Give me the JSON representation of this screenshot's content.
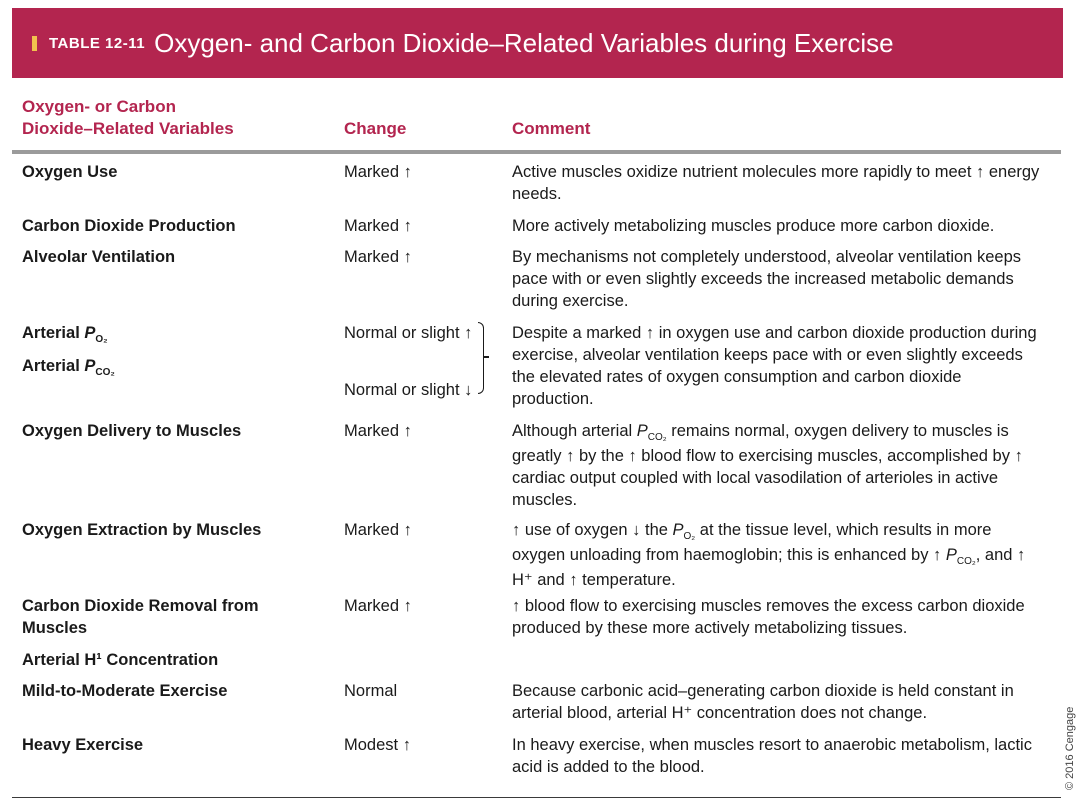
{
  "banner": {
    "tag": "TABLE 12-11",
    "title": "Oxygen- and Carbon Dioxide–Related Variables during Exercise",
    "color": "#b3254f"
  },
  "headers": {
    "var_line1": "Oxygen- or Carbon",
    "var_line2": "Dioxide–Related Variables",
    "change": "Change",
    "comment": "Comment"
  },
  "rows": [
    {
      "variable": "Oxygen Use",
      "change": "Marked ↑",
      "comment": "Active muscles oxidize nutrient molecules more rapidly to meet ↑ energy needs."
    },
    {
      "variable": "Carbon Dioxide Production",
      "change": "Marked ↑",
      "comment": "More actively metabolizing muscles produce more carbon dioxide."
    },
    {
      "variable": "Alveolar Ventilation",
      "change": "Marked ↑",
      "comment": "By mechanisms not completely understood, alveolar ventilation keeps pace with or even slightly exceeds the increased metabolic demands during exercise."
    },
    {
      "variable_main": "Arterial ",
      "variable_p": "P",
      "variable_sub": "O₂",
      "change": "Normal or slight ↑",
      "comment": "Despite a marked ↑ in oxygen use and carbon dioxide production during exercise, alveolar ventilation keeps pace with or even slightly exceeds the elevated rates of oxygen consumption and carbon dioxide production."
    },
    {
      "variable_main": "Arterial ",
      "variable_p": "P",
      "variable_sub": "CO₂",
      "change": "Normal or slight ↓"
    },
    {
      "variable": "Oxygen Delivery to Muscles",
      "change": "Marked ↑",
      "comment_pre": "Although arterial ",
      "comment_p": "P",
      "comment_sub": "CO₂",
      "comment_post": " remains normal, oxygen delivery to muscles is greatly ↑ by the ↑ blood flow to exercising muscles, accomplished by ↑ cardiac output coupled with local vasodilation of arterioles in active muscles."
    },
    {
      "variable": "Oxygen Extraction by Muscles",
      "change": "Marked ↑",
      "comment_a": "↑ use of oxygen ↓ the ",
      "comment_p1": "P",
      "comment_sub1": "O₂",
      "comment_b": " at the tissue level, which results in more oxygen unloading from haemoglobin; this is enhanced by ↑ ",
      "comment_p2": "P",
      "comment_sub2": "CO₂",
      "comment_c": ", and ↑ H⁺ and ↑ temperature."
    },
    {
      "variable": "Carbon Dioxide Removal from Muscles",
      "change": "Marked ↑",
      "comment": "↑ blood flow to exercising muscles removes the excess carbon dioxide produced by these more actively metabolizing tissues."
    },
    {
      "variable": "Arterial H¹ Concentration"
    },
    {
      "variable": "Mild-to-Moderate Exercise",
      "change": "Normal",
      "comment": "Because carbonic acid–generating carbon dioxide is held constant in arterial blood, arterial H⁺ concentration does not change."
    },
    {
      "variable": "Heavy Exercise",
      "change": "Modest ↑",
      "comment": "In heavy exercise, when muscles resort to anaerobic metabolism, lactic acid is added to the blood."
    }
  ],
  "copyright": "© 2016 Cengage"
}
